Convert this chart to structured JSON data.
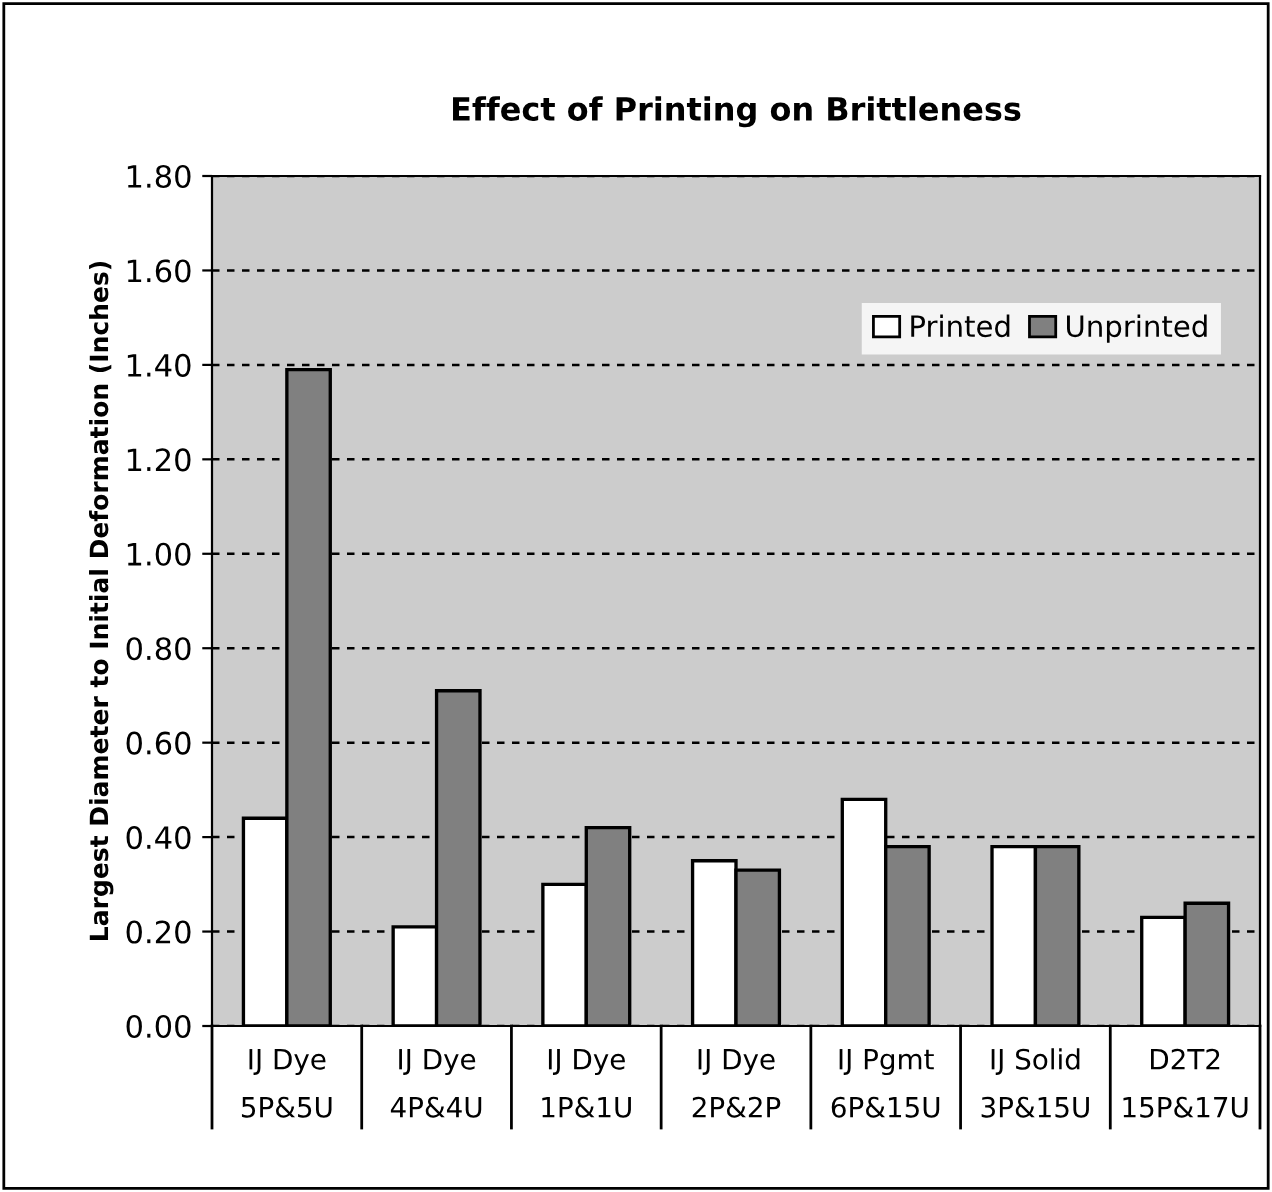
{
  "chart_data": {
    "type": "bar",
    "title": "Effect of Printing on Brittleness",
    "ylabel": "Largest Diameter to Initial Deformation (Inches)",
    "categories": [
      "IJ Dye\n5P&5U",
      "IJ Dye\n4P&4U",
      "IJ Dye\n1P&1U",
      "IJ Dye\n2P&2P",
      "IJ Pgmt\n6P&15U",
      "IJ Solid\n3P&15U",
      "D2T2\n15P&17U"
    ],
    "series": [
      {
        "name": "Printed",
        "color": "#ffffff",
        "values": [
          0.44,
          0.21,
          0.3,
          0.35,
          0.48,
          0.38,
          0.23
        ]
      },
      {
        "name": "Unprinted",
        "color": "#808080",
        "values": [
          1.39,
          0.71,
          0.42,
          0.33,
          0.38,
          0.38,
          0.26
        ]
      }
    ],
    "ylim": [
      0,
      1.8
    ],
    "yticks": [
      {
        "value": 0,
        "label": "0.00"
      },
      {
        "value": 0.2,
        "label": "0.20"
      },
      {
        "value": 0.4,
        "label": "0.40"
      },
      {
        "value": 0.6,
        "label": "0.60"
      },
      {
        "value": 0.8,
        "label": "0.80"
      },
      {
        "value": 1.0,
        "label": "1.00"
      },
      {
        "value": 1.2,
        "label": "1.20"
      },
      {
        "value": 1.4,
        "label": "1.40"
      },
      {
        "value": 1.6,
        "label": "1.60"
      },
      {
        "value": 1.8,
        "label": "1.80"
      }
    ],
    "grid": "y",
    "legend": "top right"
  }
}
